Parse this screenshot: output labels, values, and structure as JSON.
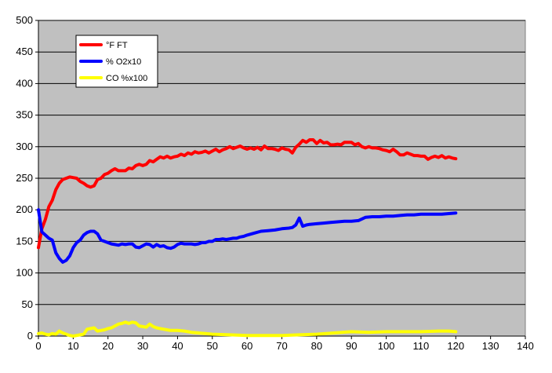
{
  "chart_data": {
    "type": "line",
    "title": "",
    "xlabel": "",
    "ylabel": "",
    "xlim": [
      0,
      140
    ],
    "ylim": [
      0,
      500
    ],
    "x_ticks": [
      0,
      10,
      20,
      30,
      40,
      50,
      60,
      70,
      80,
      90,
      100,
      110,
      120,
      130,
      140
    ],
    "y_ticks": [
      0,
      50,
      100,
      150,
      200,
      250,
      300,
      350,
      400,
      450,
      500
    ],
    "grid": "horizontal",
    "legend": "top-left",
    "plot_background": "#c0c0c0",
    "series": [
      {
        "name": "°F FT",
        "color": "#ff0000",
        "points": [
          [
            0,
            140
          ],
          [
            1,
            170
          ],
          [
            2,
            185
          ],
          [
            3,
            205
          ],
          [
            4,
            215
          ],
          [
            5,
            232
          ],
          [
            6,
            242
          ],
          [
            7,
            248
          ],
          [
            8,
            250
          ],
          [
            9,
            252
          ],
          [
            10,
            251
          ],
          [
            11,
            250
          ],
          [
            12,
            245
          ],
          [
            13,
            242
          ],
          [
            14,
            238
          ],
          [
            15,
            236
          ],
          [
            16,
            238
          ],
          [
            17,
            248
          ],
          [
            18,
            250
          ],
          [
            19,
            256
          ],
          [
            20,
            258
          ],
          [
            21,
            262
          ],
          [
            22,
            265
          ],
          [
            23,
            262
          ],
          [
            24,
            262
          ],
          [
            25,
            262
          ],
          [
            26,
            266
          ],
          [
            27,
            265
          ],
          [
            28,
            270
          ],
          [
            29,
            272
          ],
          [
            30,
            270
          ],
          [
            31,
            272
          ],
          [
            32,
            278
          ],
          [
            33,
            276
          ],
          [
            34,
            280
          ],
          [
            35,
            284
          ],
          [
            36,
            282
          ],
          [
            37,
            285
          ],
          [
            38,
            282
          ],
          [
            39,
            284
          ],
          [
            40,
            285
          ],
          [
            41,
            288
          ],
          [
            42,
            286
          ],
          [
            43,
            290
          ],
          [
            44,
            288
          ],
          [
            45,
            292
          ],
          [
            46,
            290
          ],
          [
            47,
            291
          ],
          [
            48,
            293
          ],
          [
            49,
            290
          ],
          [
            50,
            293
          ],
          [
            51,
            296
          ],
          [
            52,
            292
          ],
          [
            53,
            295
          ],
          [
            54,
            297
          ],
          [
            55,
            300
          ],
          [
            56,
            297
          ],
          [
            57,
            299
          ],
          [
            58,
            301
          ],
          [
            59,
            298
          ],
          [
            60,
            296
          ],
          [
            61,
            298
          ],
          [
            62,
            296
          ],
          [
            63,
            299
          ],
          [
            64,
            295
          ],
          [
            65,
            301
          ],
          [
            66,
            297
          ],
          [
            67,
            297
          ],
          [
            68,
            296
          ],
          [
            69,
            294
          ],
          [
            70,
            298
          ],
          [
            71,
            296
          ],
          [
            72,
            295
          ],
          [
            73,
            290
          ],
          [
            74,
            299
          ],
          [
            75,
            304
          ],
          [
            76,
            310
          ],
          [
            77,
            307
          ],
          [
            78,
            311
          ],
          [
            79,
            311
          ],
          [
            80,
            305
          ],
          [
            81,
            310
          ],
          [
            82,
            306
          ],
          [
            83,
            307
          ],
          [
            84,
            303
          ],
          [
            85,
            303
          ],
          [
            86,
            304
          ],
          [
            87,
            303
          ],
          [
            88,
            307
          ],
          [
            89,
            307
          ],
          [
            90,
            307
          ],
          [
            91,
            303
          ],
          [
            92,
            305
          ],
          [
            93,
            300
          ],
          [
            94,
            298
          ],
          [
            95,
            300
          ],
          [
            96,
            298
          ],
          [
            97,
            298
          ],
          [
            98,
            297
          ],
          [
            99,
            295
          ],
          [
            100,
            294
          ],
          [
            101,
            292
          ],
          [
            102,
            296
          ],
          [
            103,
            292
          ],
          [
            104,
            287
          ],
          [
            105,
            287
          ],
          [
            106,
            290
          ],
          [
            107,
            288
          ],
          [
            108,
            286
          ],
          [
            109,
            286
          ],
          [
            110,
            285
          ],
          [
            111,
            285
          ],
          [
            112,
            280
          ],
          [
            113,
            283
          ],
          [
            114,
            285
          ],
          [
            115,
            283
          ],
          [
            116,
            286
          ],
          [
            117,
            282
          ],
          [
            118,
            284
          ],
          [
            119,
            282
          ],
          [
            120,
            281
          ]
        ]
      },
      {
        "name": "% O2x10",
        "color": "#0000ff",
        "points": [
          [
            0,
            200
          ],
          [
            1,
            165
          ],
          [
            2,
            160
          ],
          [
            3,
            155
          ],
          [
            4,
            152
          ],
          [
            5,
            132
          ],
          [
            6,
            123
          ],
          [
            7,
            117
          ],
          [
            8,
            120
          ],
          [
            9,
            127
          ],
          [
            10,
            140
          ],
          [
            11,
            148
          ],
          [
            12,
            152
          ],
          [
            13,
            160
          ],
          [
            14,
            164
          ],
          [
            15,
            166
          ],
          [
            16,
            166
          ],
          [
            17,
            162
          ],
          [
            18,
            152
          ],
          [
            19,
            150
          ],
          [
            20,
            148
          ],
          [
            21,
            146
          ],
          [
            22,
            145
          ],
          [
            23,
            144
          ],
          [
            24,
            146
          ],
          [
            25,
            145
          ],
          [
            26,
            146
          ],
          [
            27,
            146
          ],
          [
            28,
            141
          ],
          [
            29,
            140
          ],
          [
            30,
            143
          ],
          [
            31,
            146
          ],
          [
            32,
            145
          ],
          [
            33,
            141
          ],
          [
            34,
            145
          ],
          [
            35,
            142
          ],
          [
            36,
            143
          ],
          [
            37,
            140
          ],
          [
            38,
            139
          ],
          [
            39,
            141
          ],
          [
            40,
            145
          ],
          [
            41,
            147
          ],
          [
            42,
            146
          ],
          [
            43,
            146
          ],
          [
            44,
            146
          ],
          [
            45,
            145
          ],
          [
            46,
            146
          ],
          [
            47,
            148
          ],
          [
            48,
            148
          ],
          [
            49,
            150
          ],
          [
            50,
            150
          ],
          [
            51,
            153
          ],
          [
            52,
            153
          ],
          [
            53,
            154
          ],
          [
            54,
            153
          ],
          [
            55,
            154
          ],
          [
            56,
            155
          ],
          [
            57,
            155
          ],
          [
            58,
            157
          ],
          [
            59,
            158
          ],
          [
            60,
            160
          ],
          [
            62,
            163
          ],
          [
            64,
            166
          ],
          [
            66,
            167
          ],
          [
            68,
            168
          ],
          [
            70,
            170
          ],
          [
            72,
            171
          ],
          [
            73,
            172
          ],
          [
            74,
            176
          ],
          [
            75,
            187
          ],
          [
            76,
            174
          ],
          [
            77,
            176
          ],
          [
            78,
            177
          ],
          [
            80,
            178
          ],
          [
            82,
            179
          ],
          [
            84,
            180
          ],
          [
            86,
            181
          ],
          [
            88,
            182
          ],
          [
            90,
            182
          ],
          [
            92,
            183
          ],
          [
            94,
            188
          ],
          [
            96,
            189
          ],
          [
            98,
            189
          ],
          [
            100,
            190
          ],
          [
            102,
            190
          ],
          [
            104,
            191
          ],
          [
            106,
            192
          ],
          [
            108,
            192
          ],
          [
            110,
            193
          ],
          [
            112,
            193
          ],
          [
            114,
            193
          ],
          [
            116,
            193
          ],
          [
            118,
            194
          ],
          [
            120,
            195
          ]
        ]
      },
      {
        "name": "CO %x100",
        "color": "#ffff00",
        "points": [
          [
            0,
            4
          ],
          [
            1,
            5
          ],
          [
            2,
            3
          ],
          [
            3,
            2
          ],
          [
            4,
            4
          ],
          [
            5,
            3
          ],
          [
            6,
            8
          ],
          [
            7,
            5
          ],
          [
            8,
            3
          ],
          [
            9,
            1
          ],
          [
            10,
            0
          ],
          [
            11,
            1
          ],
          [
            12,
            2
          ],
          [
            13,
            3
          ],
          [
            14,
            11
          ],
          [
            15,
            12
          ],
          [
            16,
            13
          ],
          [
            17,
            8
          ],
          [
            18,
            9
          ],
          [
            19,
            10
          ],
          [
            20,
            12
          ],
          [
            21,
            13
          ],
          [
            22,
            16
          ],
          [
            23,
            19
          ],
          [
            24,
            20
          ],
          [
            25,
            22
          ],
          [
            26,
            20
          ],
          [
            27,
            22
          ],
          [
            28,
            21
          ],
          [
            29,
            16
          ],
          [
            30,
            15
          ],
          [
            31,
            14
          ],
          [
            32,
            19
          ],
          [
            33,
            15
          ],
          [
            34,
            13
          ],
          [
            35,
            12
          ],
          [
            36,
            11
          ],
          [
            37,
            10
          ],
          [
            38,
            9
          ],
          [
            39,
            9
          ],
          [
            40,
            9
          ],
          [
            42,
            8
          ],
          [
            44,
            6
          ],
          [
            46,
            5
          ],
          [
            48,
            4
          ],
          [
            50,
            3
          ],
          [
            55,
            2
          ],
          [
            60,
            1
          ],
          [
            65,
            1
          ],
          [
            70,
            1
          ],
          [
            75,
            2
          ],
          [
            80,
            3
          ],
          [
            85,
            5
          ],
          [
            90,
            7
          ],
          [
            95,
            6
          ],
          [
            100,
            7
          ],
          [
            105,
            7
          ],
          [
            110,
            7
          ],
          [
            115,
            8
          ],
          [
            118,
            8
          ],
          [
            120,
            7
          ]
        ]
      }
    ]
  }
}
